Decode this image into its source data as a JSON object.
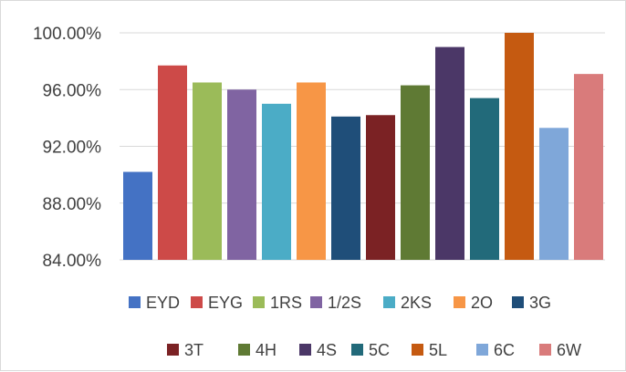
{
  "chart_data": {
    "type": "bar",
    "title": "",
    "xlabel": "",
    "ylabel": "",
    "ylim": [
      84,
      100
    ],
    "y_ticks": [
      84,
      88,
      92,
      96,
      100
    ],
    "y_tick_labels": [
      "84.00%",
      "88.00%",
      "92.00%",
      "96.00%",
      "100.00%"
    ],
    "grid": true,
    "legend_position": "bottom",
    "categories": [
      "EYD",
      "EYG",
      "1RS",
      "1/2S",
      "2KS",
      "2O",
      "3G",
      "3T",
      "4H",
      "4S",
      "5C",
      "5L",
      "6C",
      "6W"
    ],
    "values": [
      90.2,
      97.7,
      96.5,
      96.0,
      95.0,
      96.5,
      94.1,
      94.2,
      96.3,
      99.0,
      95.4,
      100.0,
      93.3,
      97.1
    ],
    "colors": [
      "#4472C4",
      "#CD4A48",
      "#9BBB59",
      "#8064A2",
      "#4BACC6",
      "#F79646",
      "#1F4E79",
      "#7B2224",
      "#5F7A34",
      "#4B3767",
      "#226A7A",
      "#C55A11",
      "#7FA7D9",
      "#D97B7B"
    ]
  }
}
